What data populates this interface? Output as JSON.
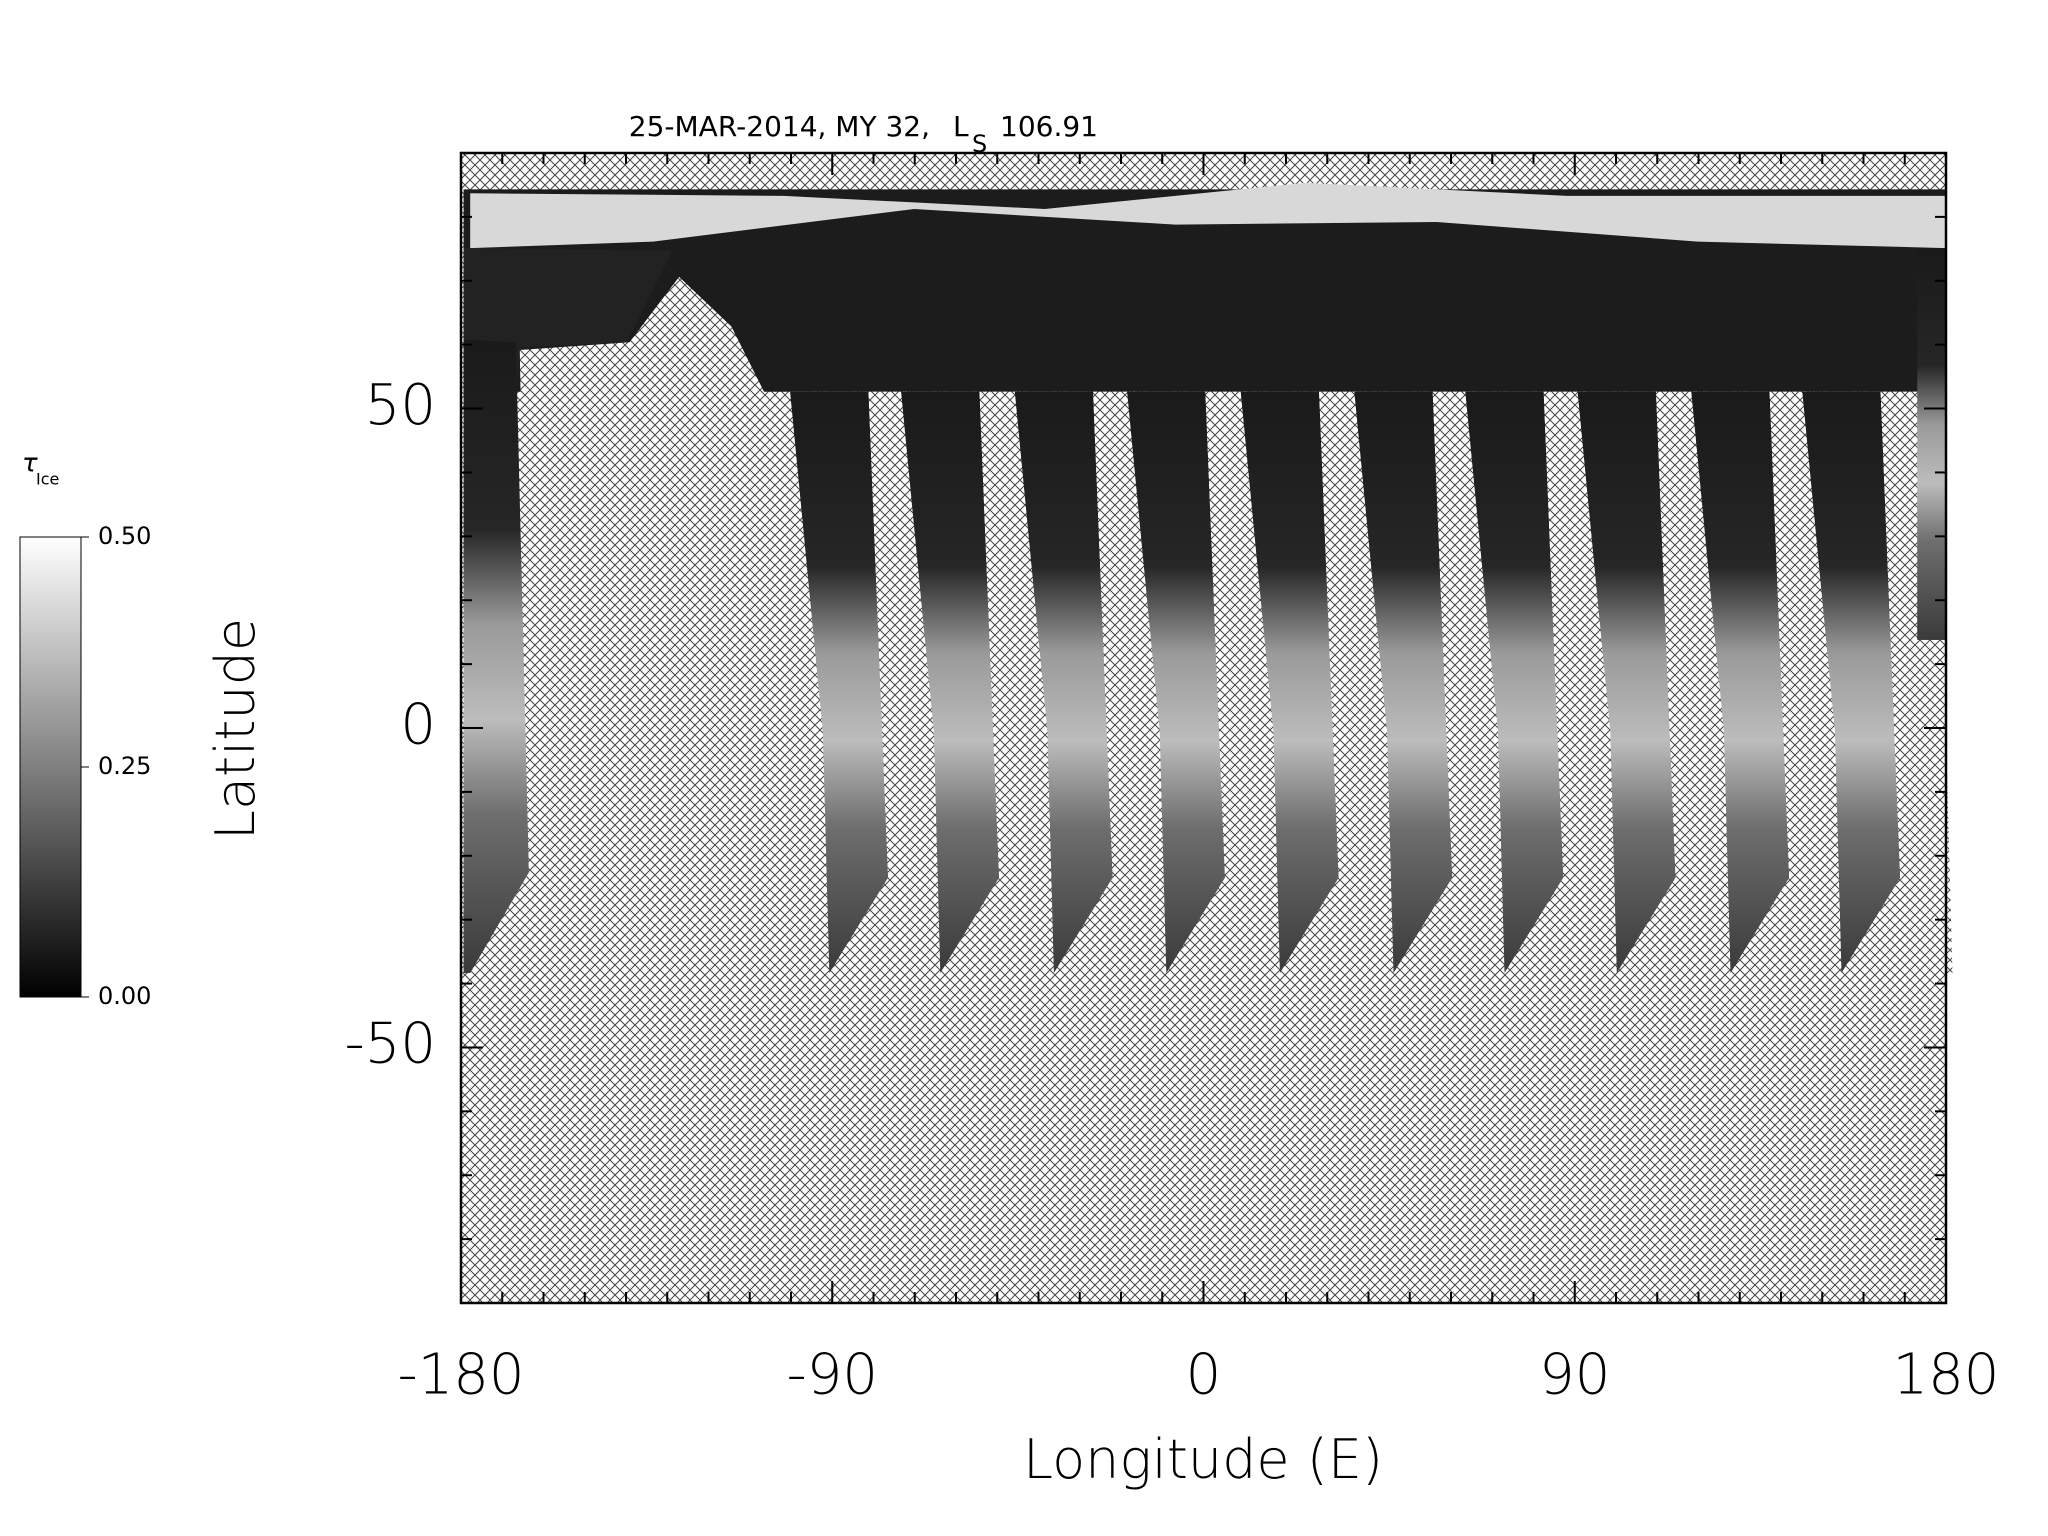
{
  "chart_data": {
    "type": "map",
    "title": "25-MAR-2014, MY 32,",
    "ls_label": "L",
    "ls_sub": "S",
    "ls_value": 106.91,
    "xlabel": "Longitude (E)",
    "ylabel": "Latitude",
    "xlim": [
      -180,
      180
    ],
    "ylim": [
      -90,
      90
    ],
    "xticks": [
      -180,
      -90,
      0,
      90,
      180
    ],
    "yticks": [
      -50,
      0,
      50
    ],
    "xminorticks": [
      -170,
      -160,
      -150,
      -140,
      -130,
      -120,
      -110,
      -100,
      -80,
      -70,
      -60,
      -50,
      -40,
      -30,
      -20,
      -10,
      10,
      20,
      30,
      40,
      50,
      60,
      70,
      80,
      100,
      110,
      120,
      130,
      140,
      150,
      160,
      170
    ],
    "yminorticks": [
      -80,
      -70,
      -60,
      -40,
      -30,
      -20,
      -10,
      10,
      20,
      30,
      40,
      60,
      70,
      80
    ],
    "colorbar_label": "τ",
    "colorbar_label_sub": "Ice",
    "colorbar_lim": [
      0,
      0.5
    ],
    "colorbar_ticks": [
      {
        "value": 0,
        "label": "0.00"
      },
      {
        "value": 0.25,
        "label": "0.25"
      },
      {
        "value": 0.5,
        "label": "0.50"
      }
    ],
    "colormap": [
      "#000000",
      "#ffffff"
    ],
    "missing_pattern": "crosshatch"
  }
}
